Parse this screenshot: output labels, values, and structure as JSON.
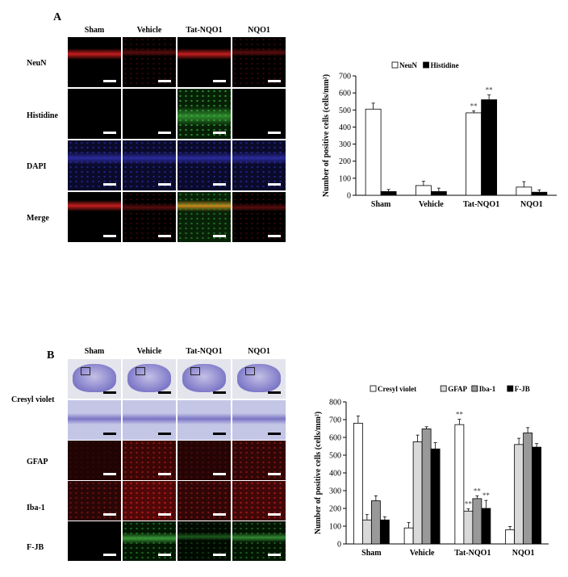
{
  "panel_a": {
    "letter": "A",
    "columns": [
      "Sham",
      "Vehicle",
      "Tat-NQO1",
      "NQO1"
    ],
    "rows": [
      "NeuN",
      "Histidine",
      "DAPI",
      "Merge"
    ]
  },
  "panel_b": {
    "letter": "B",
    "columns": [
      "Sham",
      "Vehicle",
      "Tat-NQO1",
      "NQO1"
    ],
    "rows": [
      "Cresyl violet",
      "GFAP",
      "Iba-1",
      "F-JB"
    ]
  },
  "colors": {
    "neun_red": "#c41e1e",
    "histidine_green": "#2e8b2e",
    "dapi_blue": "#2a2a9a",
    "merge_orange": "#c88a1e",
    "cresyl_purple": "#7a74c4"
  },
  "chart_data": [
    {
      "type": "bar",
      "categories": [
        "Sham",
        "Vehicle",
        "Tat-NQO1",
        "NQO1"
      ],
      "series": [
        {
          "name": "NeuN",
          "values": [
            505,
            57,
            483,
            48
          ],
          "errors": [
            35,
            25,
            12,
            32
          ],
          "color": "#ffffff"
        },
        {
          "name": "Histidine",
          "values": [
            22,
            22,
            560,
            18
          ],
          "errors": [
            12,
            20,
            28,
            14
          ],
          "color": "#000000"
        }
      ],
      "significance": [
        {
          "category": "Tat-NQO1",
          "series": "NeuN",
          "label": "**"
        },
        {
          "category": "Tat-NQO1",
          "series": "Histidine",
          "label": "**"
        }
      ],
      "ylabel": "Number of positive cells (cells/mm²)",
      "ylim": [
        0,
        700
      ],
      "yticks": [
        0,
        100,
        200,
        300,
        400,
        500,
        600,
        700
      ],
      "legend": "top"
    },
    {
      "type": "bar",
      "categories": [
        "Sham",
        "Vehicle",
        "Tat-NQO1",
        "NQO1"
      ],
      "series": [
        {
          "name": "Cresyl violet",
          "values": [
            680,
            90,
            672,
            80
          ],
          "errors": [
            40,
            30,
            30,
            18
          ],
          "color": "#ffffff"
        },
        {
          "name": "GFAP",
          "values": [
            135,
            575,
            185,
            560
          ],
          "errors": [
            30,
            38,
            12,
            35
          ],
          "color": "#d9d9d9"
        },
        {
          "name": "Iba-1",
          "values": [
            243,
            648,
            255,
            625
          ],
          "errors": [
            28,
            12,
            15,
            30
          ],
          "color": "#999999"
        },
        {
          "name": "F-JB",
          "values": [
            135,
            535,
            200,
            545
          ],
          "errors": [
            18,
            35,
            45,
            20
          ],
          "color": "#000000"
        }
      ],
      "significance": [
        {
          "category": "Tat-NQO1",
          "series": "Cresyl violet",
          "label": "**"
        },
        {
          "category": "Tat-NQO1",
          "series": "GFAP",
          "label": "**"
        },
        {
          "category": "Tat-NQO1",
          "series": "Iba-1",
          "label": "**"
        },
        {
          "category": "Tat-NQO1",
          "series": "F-JB",
          "label": "**"
        }
      ],
      "ylabel": "Number of positive cells (cells/mm²)",
      "ylim": [
        0,
        800
      ],
      "yticks": [
        0,
        100,
        200,
        300,
        400,
        500,
        600,
        700,
        800
      ],
      "legend": "top"
    }
  ]
}
